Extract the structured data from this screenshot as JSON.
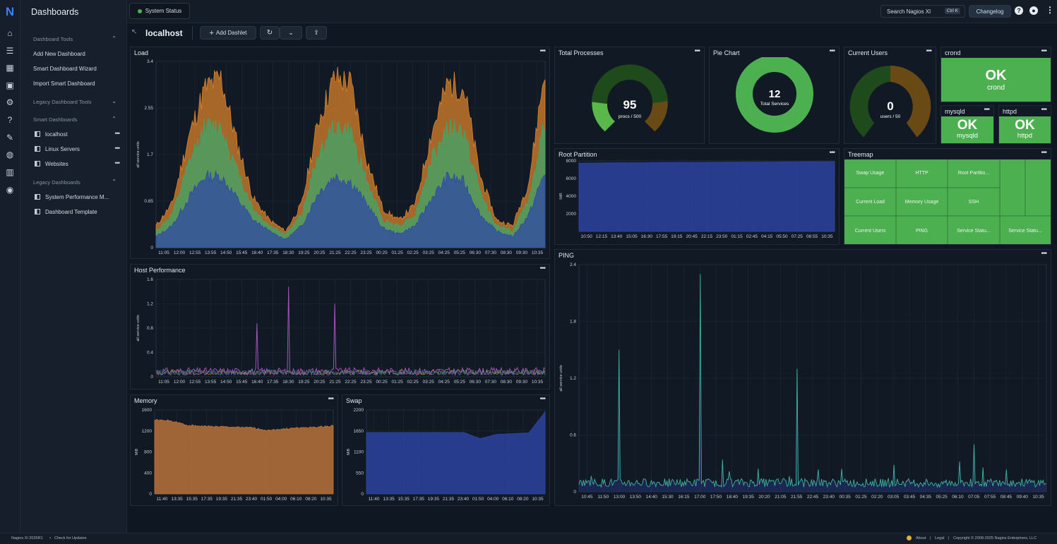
{
  "sidebar": {
    "title": "Dashboards",
    "sections": [
      {
        "label": "Dashboard Tools",
        "items": [
          "Add New Dashboard",
          "Smart Dashboard Wizard",
          "Import Smart Dashboard"
        ]
      },
      {
        "label": "Legacy Dashboard Tools",
        "items": []
      },
      {
        "label": "Smart Dashboards",
        "items": [
          "localhost",
          "Linux Servers",
          "Websites"
        ]
      },
      {
        "label": "Legacy Dashboards",
        "items": [
          "System Performance M...",
          "Dashboard Template"
        ]
      }
    ]
  },
  "topbar": {
    "tab": "System Status",
    "search": "Search Nagios XI",
    "shortcut": "Ctrl K",
    "changelog": "Changelog"
  },
  "header": {
    "host": "localhost",
    "add_dashlet": "Add Dashlet"
  },
  "panels": {
    "load": "Load",
    "host_perf": "Host Performance",
    "memory": "Memory",
    "swap": "Swap",
    "total_proc": "Total Processes",
    "pie": "Pie Chart",
    "users": "Current Users",
    "crond": "crond",
    "mysqld": "mysqld",
    "httpd": "httpd",
    "root": "Root Partition",
    "treemap": "Treemap",
    "ping": "PING"
  },
  "gauges": {
    "proc_value": "95",
    "proc_label": "procs / 500",
    "pie_value": "12",
    "pie_label": "Total Services",
    "users_value": "0",
    "users_label": "users / 50"
  },
  "status": {
    "ok": "OK",
    "crond": "crond",
    "mysqld": "mysqld",
    "httpd": "httpd"
  },
  "treemap": [
    "Swap Usage",
    "HTTP",
    "Root Partitio...",
    "Current Load",
    "Memory Usage",
    "SSH",
    "Current Users",
    "PING",
    "Service Statu...",
    "Service Statu..."
  ],
  "axis_units": {
    "all": "all service units",
    "mib": "MiB"
  },
  "footer": {
    "version": "Nagios XI 2026R1",
    "updates": "Check for Updates",
    "about": "About",
    "legal": "Legal",
    "copyright": "Copyright © 2008-2025 Nagios Enterprises, LLC"
  },
  "chart_data": [
    {
      "type": "area",
      "title": "Load",
      "ylabel": "all service units",
      "ylim": [
        0,
        3.4
      ],
      "yticks": [
        "0",
        "0.85",
        "1.7",
        "2.55",
        "3.4"
      ],
      "x": [
        "11:05",
        "12:00",
        "12:55",
        "13:55",
        "14:50",
        "15:45",
        "16:40",
        "17:35",
        "18:30",
        "19:25",
        "20:25",
        "21:25",
        "22:25",
        "23:25",
        "00:25",
        "01:25",
        "02:25",
        "03:25",
        "04:25",
        "05:25",
        "06:30",
        "07:30",
        "08:30",
        "09:30",
        "10:35"
      ],
      "series": [
        {
          "color": "#d9822b",
          "values": [
            0.4,
            0.8,
            2.0,
            2.9,
            3.1,
            1.9,
            0.9,
            0.5,
            0.3,
            0.8,
            2.3,
            3.1,
            3.0,
            1.6,
            0.7,
            0.5,
            0.8,
            2.1,
            3.0,
            2.9,
            1.3,
            0.5,
            0.4,
            1.2,
            3.3
          ]
        },
        {
          "color": "#3fa66b",
          "values": [
            0.3,
            0.6,
            1.5,
            2.2,
            2.2,
            1.4,
            0.7,
            0.4,
            0.25,
            0.6,
            1.7,
            2.2,
            2.1,
            1.2,
            0.5,
            0.4,
            0.6,
            1.6,
            2.2,
            2.1,
            1.0,
            0.4,
            0.3,
            0.9,
            2.3
          ]
        },
        {
          "color": "#2f4aa5",
          "values": [
            0.2,
            0.4,
            0.9,
            1.3,
            1.3,
            0.9,
            0.5,
            0.3,
            0.15,
            0.4,
            1.0,
            1.3,
            1.2,
            0.8,
            0.35,
            0.25,
            0.4,
            0.9,
            1.3,
            1.2,
            0.6,
            0.3,
            0.2,
            0.6,
            1.4
          ]
        }
      ]
    },
    {
      "type": "line",
      "title": "Host Performance",
      "ylabel": "all service units",
      "ylim": [
        0,
        1.6
      ],
      "yticks": [
        "0",
        "0.4",
        "0.8",
        "1.2",
        "1.6"
      ],
      "x": [
        "11:05",
        "12:00",
        "12:55",
        "13:55",
        "14:50",
        "15:45",
        "16:40",
        "17:35",
        "18:30",
        "19:25",
        "20:25",
        "21:25",
        "22:25",
        "23:25",
        "00:25",
        "01:25",
        "02:25",
        "03:25",
        "04:25",
        "05:25",
        "06:30",
        "07:30",
        "08:30",
        "09:30",
        "10:35"
      ],
      "spikes": [
        {
          "x": "16:40",
          "y": 0.88
        },
        {
          "x": "18:30",
          "y": 1.48
        },
        {
          "x": "21:25",
          "y": 1.2
        }
      ]
    },
    {
      "type": "area",
      "title": "Memory",
      "ylabel": "MiB",
      "ylim": [
        0,
        1600
      ],
      "yticks": [
        "0",
        "400",
        "800",
        "1200",
        "1600"
      ],
      "x": [
        "11:40",
        "13:35",
        "15:35",
        "17:35",
        "19:35",
        "21:35",
        "23:40",
        "01:50",
        "04:00",
        "06:10",
        "08:20",
        "10:35"
      ],
      "values": [
        1410,
        1390,
        1310,
        1290,
        1280,
        1270,
        1260,
        1210,
        1240,
        1260,
        1270,
        1300
      ],
      "color": "#b8733a"
    },
    {
      "type": "area",
      "title": "Swap",
      "ylabel": "MiB",
      "ylim": [
        0,
        2200
      ],
      "yticks": [
        "0",
        "550",
        "1100",
        "1650",
        "2200"
      ],
      "x": [
        "11:40",
        "13:35",
        "15:35",
        "17:35",
        "19:35",
        "21:35",
        "23:40",
        "01:50",
        "04:00",
        "06:10",
        "08:20",
        "10:35"
      ],
      "values": [
        1610,
        1610,
        1610,
        1610,
        1610,
        1610,
        1610,
        1450,
        1560,
        1580,
        1600,
        2150
      ],
      "color": "#2d43a0"
    },
    {
      "type": "area",
      "title": "Root Partition",
      "ylabel": "MiB",
      "ylim": [
        0,
        8000
      ],
      "yticks": [
        "2000",
        "4000",
        "6000",
        "8000"
      ],
      "x": [
        "10:50",
        "12:15",
        "13:40",
        "15:05",
        "16:30",
        "17:55",
        "19:15",
        "20:45",
        "22:15",
        "23:50",
        "01:15",
        "02:45",
        "04:15",
        "05:50",
        "07:25",
        "08:55",
        "10:35"
      ],
      "values": [
        7750,
        7760,
        7780,
        7790,
        7800,
        7810,
        7820,
        7830,
        7840,
        7850,
        7860,
        7870,
        7880,
        7890,
        7900,
        7910,
        7920
      ],
      "color": "#2d43a0"
    },
    {
      "type": "line",
      "title": "PING",
      "ylabel": "all service units",
      "ylim": [
        0,
        2.4
      ],
      "yticks": [
        "0",
        "0.6",
        "1.2",
        "1.8",
        "2.4"
      ],
      "x": [
        "10:45",
        "11:50",
        "13:00",
        "13:50",
        "14:40",
        "15:30",
        "16:15",
        "17:00",
        "17:50",
        "18:40",
        "19:35",
        "20:20",
        "21:05",
        "21:55",
        "22:45",
        "23:40",
        "00:35",
        "01:25",
        "02:20",
        "03:05",
        "03:45",
        "04:35",
        "05:25",
        "06:10",
        "07:05",
        "07:55",
        "08:45",
        "09:40",
        "10:35"
      ],
      "spikes": [
        {
          "x": "13:00",
          "y": 1.5
        },
        {
          "x": "17:00",
          "y": 2.3
        },
        {
          "x": "21:55",
          "y": 1.3
        },
        {
          "x": "07:05",
          "y": 0.5
        }
      ],
      "color": "#3fb5a0"
    }
  ]
}
